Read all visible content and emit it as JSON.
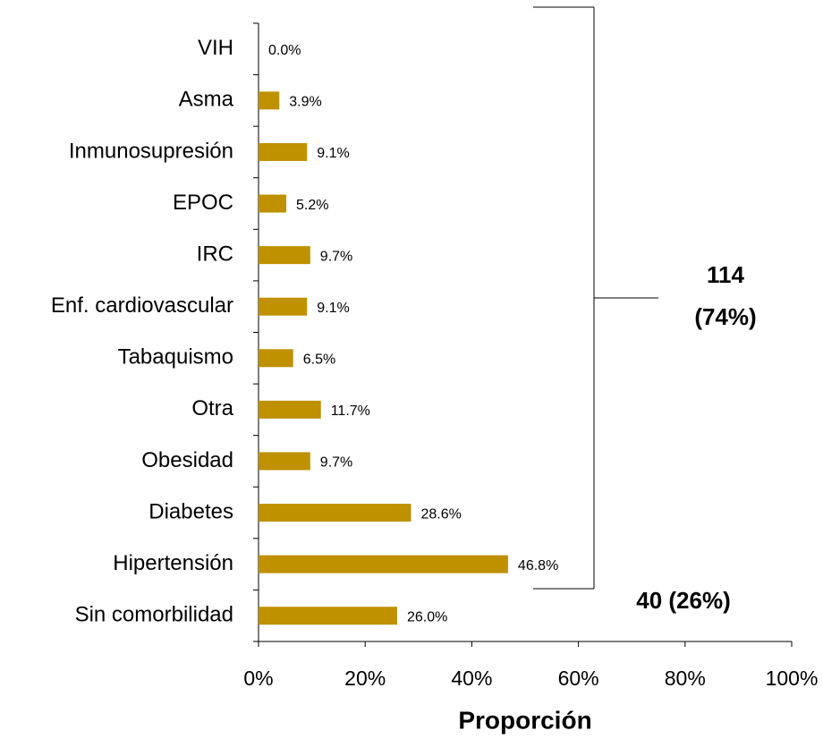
{
  "chart_data": {
    "type": "bar",
    "orientation": "horizontal",
    "x_label": "Proporción",
    "categories": [
      "VIH",
      "Asma",
      "Inmunosupresión",
      "EPOC",
      "IRC",
      "Enf. cardiovascular",
      "Tabaquismo",
      "Otra",
      "Obesidad",
      "Diabetes",
      "Hipertensión",
      "Sin comorbilidad"
    ],
    "values": [
      0.0,
      3.9,
      9.1,
      5.2,
      9.7,
      9.1,
      6.5,
      11.7,
      9.7,
      28.6,
      46.8,
      26.0
    ],
    "value_labels": [
      "0.0%",
      "3.9%",
      "9.1%",
      "5.2%",
      "9.7%",
      "9.1%",
      "6.5%",
      "11.7%",
      "9.7%",
      "28.6%",
      "46.8%",
      "26.0%"
    ],
    "color": "#bf9000",
    "xlim": [
      0,
      100
    ],
    "xticks": [
      {
        "value": 0,
        "label": "0%"
      },
      {
        "value": 20,
        "label": "20%"
      },
      {
        "value": 40,
        "label": "40%"
      },
      {
        "value": 60,
        "label": "60%"
      },
      {
        "value": 80,
        "label": "80%"
      },
      {
        "value": 100,
        "label": "100%"
      }
    ],
    "annotations": [
      "114",
      "(74%)",
      "40 (26%)"
    ]
  }
}
